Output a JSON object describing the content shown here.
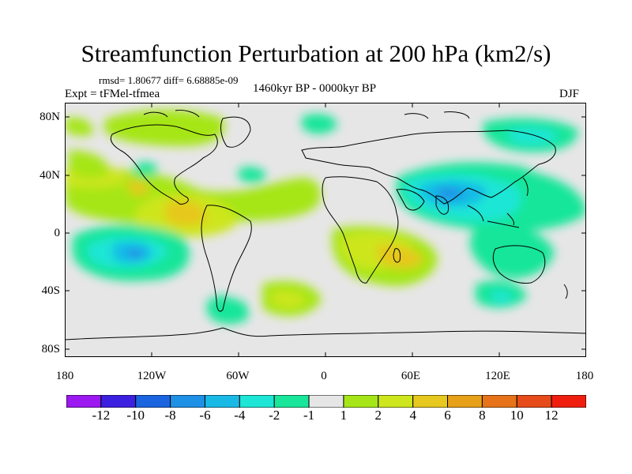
{
  "title": "Streamfunction Perturbation at 200 hPa (km2/s)",
  "stats": "rmsd= 1.80677 diff= 6.68885e-09",
  "experiment": "Expt = tFMel-tfmea",
  "period": "1460kyr BP - 0000kyr BP",
  "season": "DJF",
  "lat_ticks": [
    "80N",
    "40N",
    "0",
    "40S",
    "80S"
  ],
  "lon_ticks": [
    "180",
    "120W",
    "60W",
    "0",
    "60E",
    "120E",
    "180"
  ],
  "colorbar": {
    "labels": [
      "-12",
      "-10",
      "-8",
      "-6",
      "-4",
      "-2",
      "-1",
      "1",
      "2",
      "4",
      "6",
      "8",
      "10",
      "12"
    ],
    "colors": [
      "#9b19f0",
      "#3c20e0",
      "#1a64e0",
      "#1e90e6",
      "#19b9e6",
      "#1ee6d6",
      "#19e69a",
      "#e6e6e6",
      "#a6e619",
      "#cde61e",
      "#e6c81e",
      "#e6a019",
      "#e67319",
      "#e64b19",
      "#f01e0f"
    ]
  },
  "colors": {
    "land_outline": "#000000",
    "background": "#e6e6e6"
  }
}
